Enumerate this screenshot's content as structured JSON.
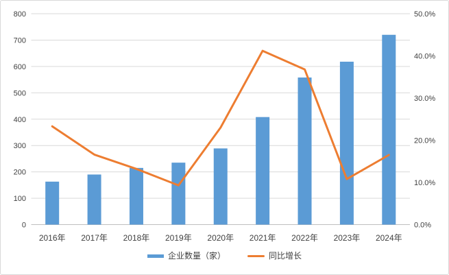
{
  "chart_data": {
    "type": "bar",
    "subtype": "combo-bar-line-dual-axis",
    "title": "",
    "categories": [
      "2016年",
      "2017年",
      "2018年",
      "2019年",
      "2020年",
      "2021年",
      "2022年",
      "2023年",
      "2024年"
    ],
    "series": [
      {
        "name": "企业数量（家）",
        "type": "bar",
        "axis": "left",
        "color": "#5B9BD5",
        "values": [
          163,
          190,
          215,
          235,
          289,
          408,
          558,
          618,
          720
        ]
      },
      {
        "name": "同比增长",
        "type": "line",
        "axis": "right",
        "color": "#ED7D31",
        "values": [
          23.3,
          16.6,
          13.2,
          9.3,
          23.0,
          41.2,
          36.8,
          10.8,
          16.5
        ],
        "unit": "%"
      }
    ],
    "left_axis": {
      "min": 0,
      "max": 800,
      "step": 100,
      "labels": [
        "0",
        "100",
        "200",
        "300",
        "400",
        "500",
        "600",
        "700",
        "800"
      ]
    },
    "right_axis": {
      "min": 0,
      "max": 50,
      "step": 10,
      "labels": [
        "0.0%",
        "10.0%",
        "20.0%",
        "30.0%",
        "40.0%",
        "50.0%"
      ]
    },
    "grid": true,
    "legend_position": "bottom"
  },
  "colors": {
    "gridline": "#D9D9D9",
    "axis_line": "#BFBFBF",
    "tick_text": "#404040",
    "background": "#FFFFFF",
    "border": "#D9D9D9"
  }
}
